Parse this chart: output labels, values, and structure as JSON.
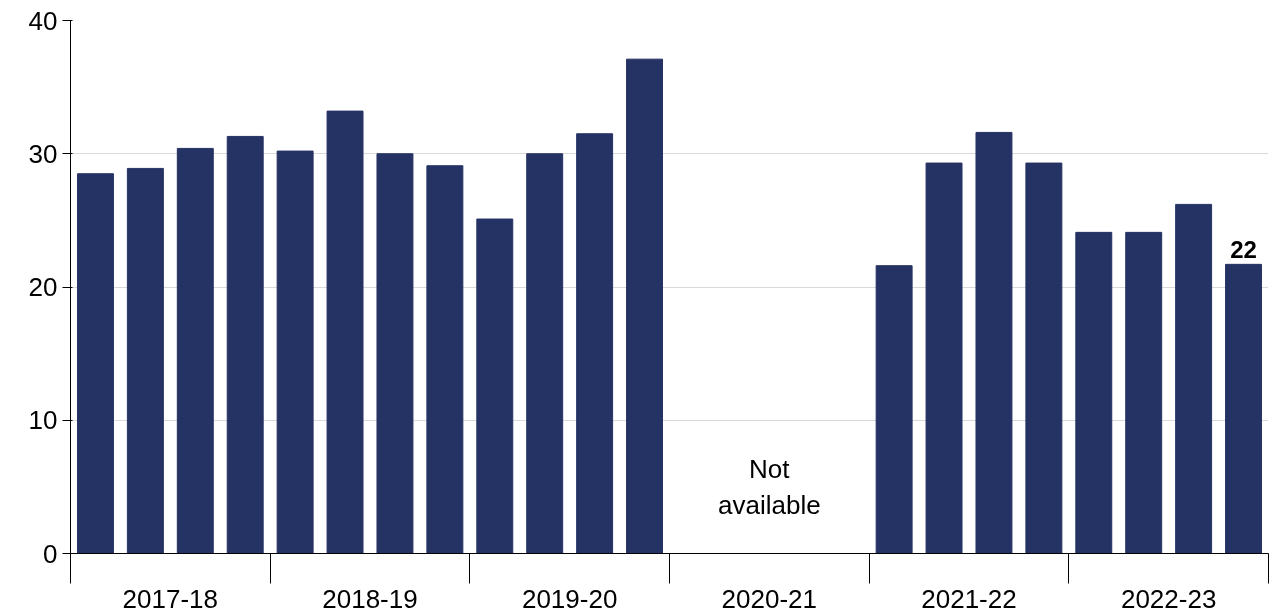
{
  "chart_data": {
    "type": "bar",
    "categories": [
      "2017-18",
      "2018-19",
      "2019-20",
      "2020-21",
      "2021-22",
      "2022-23"
    ],
    "series": [
      {
        "color": "#253264",
        "values": [
          28.5,
          30.2,
          25.1,
          null,
          21.6,
          24.1
        ]
      },
      {
        "color": "#253264",
        "values": [
          28.9,
          33.2,
          30.0,
          null,
          29.3,
          24.1
        ]
      },
      {
        "color": "#253264",
        "values": [
          30.4,
          30.0,
          31.5,
          null,
          31.6,
          26.2
        ]
      },
      {
        "color": "#253264",
        "values": [
          31.3,
          29.1,
          37.1,
          null,
          29.3,
          21.7
        ],
        "value_labels": [
          null,
          null,
          null,
          null,
          null,
          "22"
        ]
      }
    ],
    "ylim": [
      0,
      40
    ],
    "yticks": [
      0,
      10,
      20,
      30,
      40
    ],
    "grid": "y",
    "annotations": [
      "Not\navailable"
    ]
  }
}
